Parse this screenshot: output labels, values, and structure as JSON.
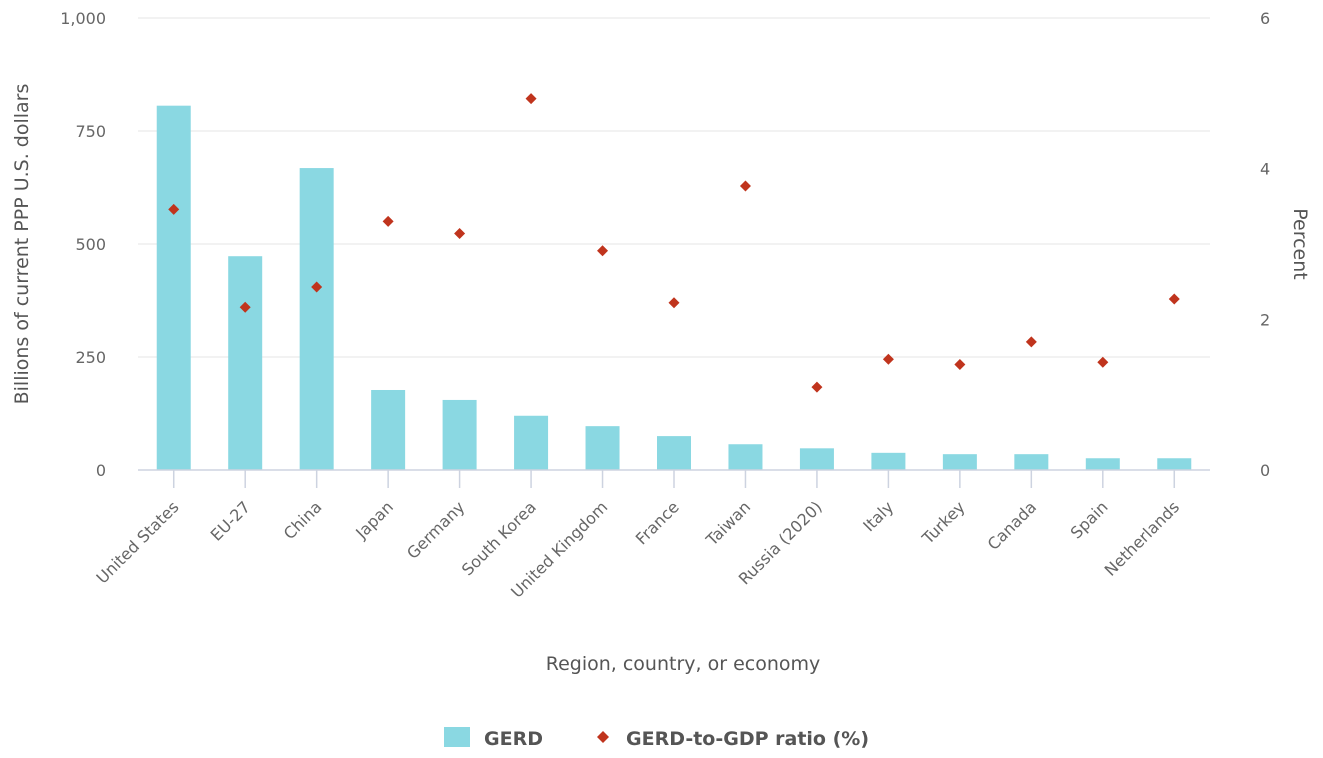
{
  "chart_data": {
    "type": "bar",
    "xlabel": "Region, country, or economy",
    "ylabel": "Billions of current PPP U.S. dollars",
    "y2label": "Percent",
    "categories": [
      "United States",
      "EU-27",
      "China",
      "Japan",
      "Germany",
      "South Korea",
      "United Kingdom",
      "France",
      "Taiwan",
      "Russia (2020)",
      "Italy",
      "Turkey",
      "Canada",
      "Spain",
      "Netherlands"
    ],
    "series": [
      {
        "name": "GERD",
        "type": "bar",
        "axis": "left",
        "color": "#8ad8e2",
        "values": [
          806,
          473,
          668,
          177,
          155,
          120,
          97,
          75,
          57,
          48,
          38,
          35,
          35,
          26,
          26
        ]
      },
      {
        "name": "GERD-to-GDP ratio (%)",
        "type": "scatter",
        "marker": "diamond",
        "axis": "right",
        "color": "#c0341d",
        "values": [
          3.46,
          2.16,
          2.43,
          3.3,
          3.14,
          4.93,
          2.91,
          2.22,
          3.77,
          1.1,
          1.47,
          1.4,
          1.7,
          1.43,
          2.27
        ]
      }
    ],
    "yticks": [
      "0",
      "250",
      "500",
      "750",
      "1,000"
    ],
    "ylim": [
      0,
      1000
    ],
    "y2ticks": [
      "0",
      "2",
      "4",
      "6"
    ],
    "y2lim": [
      0,
      6
    ],
    "grid": true,
    "legend_position": "bottom-center"
  }
}
